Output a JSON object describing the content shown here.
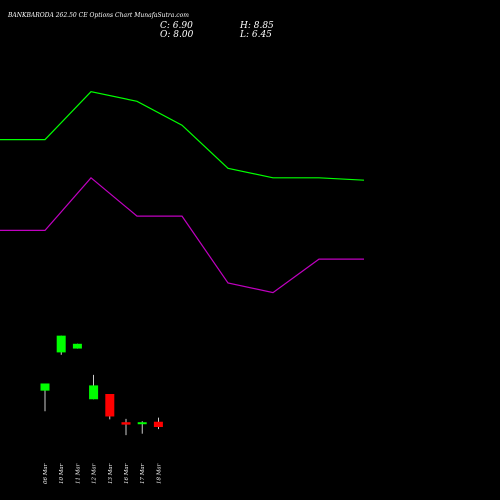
{
  "header": {
    "title": "BANKBARODA 262.50 CE Options Chart MunafaSutra.com",
    "close_label": "C: 6.90",
    "open_label": "O: 8.00",
    "high_label": "H: 8.85",
    "low_label": "L: 6.45"
  },
  "chart_data": {
    "type": "candlestick",
    "background": "#000000",
    "colors": {
      "up": "#00ff00",
      "down": "#ff0000",
      "upper_line": "#00ff00",
      "lower_line": "#c000c0",
      "wick": "#ffffff"
    },
    "dates": [
      "06 Mar",
      "10 Mar",
      "11 Mar",
      "12 Mar",
      "13 Mar",
      "16 Mar",
      "17 Mar",
      "18 Mar"
    ],
    "ohlc": [
      {
        "date": "06 Mar",
        "open": 14.5,
        "high": 15.6,
        "low": 10.2,
        "close": 16.0
      },
      {
        "date": "10 Mar",
        "open": 22.5,
        "high": 26.0,
        "low": 22.0,
        "close": 26.0
      },
      {
        "date": "11 Mar",
        "open": 23.3,
        "high": 24.3,
        "low": 23.3,
        "close": 24.3
      },
      {
        "date": "12 Mar",
        "open": 12.7,
        "high": 17.8,
        "low": 12.7,
        "close": 15.6
      },
      {
        "date": "13 Mar",
        "open": 13.8,
        "high": 13.8,
        "low": 8.5,
        "close": 9.1
      },
      {
        "date": "16 Mar",
        "open": 7.9,
        "high": 8.6,
        "low": 5.2,
        "close": 7.4
      },
      {
        "date": "17 Mar",
        "open": 7.5,
        "high": 8.1,
        "low": 5.5,
        "close": 7.9
      },
      {
        "date": "18 Mar",
        "open": 8.0,
        "high": 8.85,
        "low": 6.45,
        "close": 6.9
      }
    ],
    "upper_band": [
      67,
      67,
      77,
      75,
      70,
      61,
      59,
      59,
      58.5
    ],
    "lower_band": [
      48,
      48,
      59,
      51,
      51,
      37,
      35,
      42,
      42
    ],
    "ylim": [
      0,
      92
    ]
  }
}
